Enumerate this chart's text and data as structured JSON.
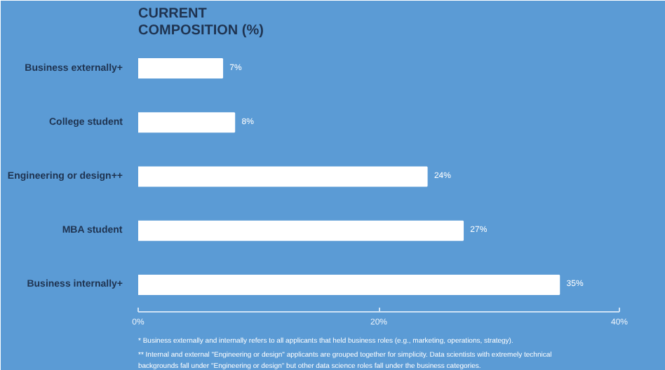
{
  "chart_data": {
    "type": "bar",
    "orientation": "horizontal",
    "title": "CURRENT\nCOMPOSITION (%)",
    "categories": [
      "Business externally+",
      "College student",
      "Engineering or design++",
      "MBA student",
      "Business internally+"
    ],
    "values": [
      7,
      8,
      24,
      27,
      35
    ],
    "value_labels": [
      "7%",
      "8%",
      "24%",
      "27%",
      "35%"
    ],
    "color": "#ffffff",
    "xlim": [
      0,
      40
    ],
    "xticks": [
      {
        "value": 0,
        "label": "0%"
      },
      {
        "value": 20,
        "label": "20%"
      },
      {
        "value": 40,
        "label": "40%"
      }
    ],
    "grid": false,
    "annotations": [
      "* Business externally and internally refers to all applicants that held business roles (e.g., marketing, operations, strategy).",
      "** Internal and external \"Engineering or design\" applicants are grouped together for simplicity. Data scientists with extremely technical backgrounds fall under \"Engineering or design\" but other data science roles fall under the business categories."
    ]
  }
}
